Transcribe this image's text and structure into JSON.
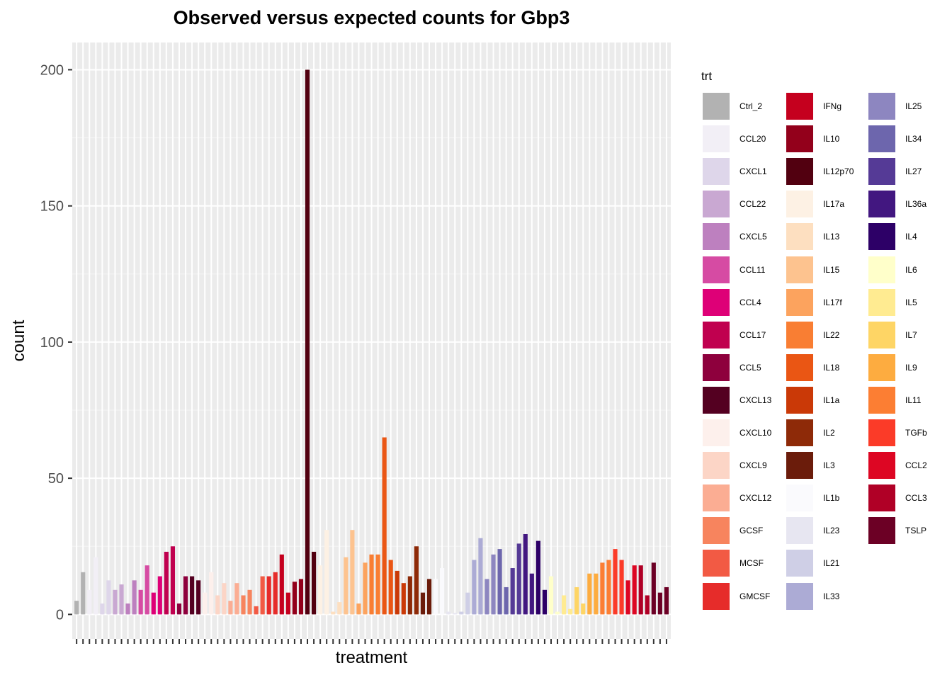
{
  "chart_data": {
    "type": "bar",
    "title": "Observed versus expected counts for Gbp3",
    "xlabel": "treatment",
    "ylabel": "count",
    "ylim": [
      -9,
      210
    ],
    "yticks": [
      0,
      50,
      100,
      150,
      200
    ],
    "grid": true,
    "legend": {
      "title": "trt",
      "placement": "right",
      "columns": 3,
      "entries": [
        {
          "label": "Ctrl_2",
          "color": "#b2b2b2"
        },
        {
          "label": "CCL20",
          "color": "#f2eff6"
        },
        {
          "label": "CXCL1",
          "color": "#ded6ea"
        },
        {
          "label": "CCL22",
          "color": "#c9a8d2"
        },
        {
          "label": "CXCL5",
          "color": "#bd80bf"
        },
        {
          "label": "CCL11",
          "color": "#d64ba3"
        },
        {
          "label": "CCL4",
          "color": "#de0077"
        },
        {
          "label": "CCL17",
          "color": "#c0004f"
        },
        {
          "label": "CCL5",
          "color": "#8e003d"
        },
        {
          "label": "CXCL13",
          "color": "#540021"
        },
        {
          "label": "CXCL10",
          "color": "#fdf0ec"
        },
        {
          "label": "CXCL9",
          "color": "#fcd5c6"
        },
        {
          "label": "CXCL12",
          "color": "#fbad93"
        },
        {
          "label": "GCSF",
          "color": "#f7845e"
        },
        {
          "label": "MCSF",
          "color": "#f25a44"
        },
        {
          "label": "GMCSF",
          "color": "#e62c2a"
        },
        {
          "label": "IFNg",
          "color": "#c5001e"
        },
        {
          "label": "IL10",
          "color": "#93001b"
        },
        {
          "label": "IL12p70",
          "color": "#520010"
        },
        {
          "label": "IL17a",
          "color": "#fdf1e4"
        },
        {
          "label": "IL13",
          "color": "#fddfc0"
        },
        {
          "label": "IL15",
          "color": "#fdc38f"
        },
        {
          "label": "IL17f",
          "color": "#fca35e"
        },
        {
          "label": "IL22",
          "color": "#f97e33"
        },
        {
          "label": "IL18",
          "color": "#ea5614"
        },
        {
          "label": "IL1a",
          "color": "#ca3907"
        },
        {
          "label": "IL2",
          "color": "#8e2a08"
        },
        {
          "label": "IL3",
          "color": "#6b1c0b"
        },
        {
          "label": "IL1b",
          "color": "#fafafd"
        },
        {
          "label": "IL23",
          "color": "#e7e6f1"
        },
        {
          "label": "IL21",
          "color": "#cfcfe6"
        },
        {
          "label": "IL33",
          "color": "#acabd5"
        },
        {
          "label": "IL25",
          "color": "#8d86c0"
        },
        {
          "label": "IL34",
          "color": "#6d66ad"
        },
        {
          "label": "IL27",
          "color": "#553a96"
        },
        {
          "label": "IL36a",
          "color": "#421780"
        },
        {
          "label": "IL4",
          "color": "#2d0067"
        },
        {
          "label": "IL6",
          "color": "#ffffca"
        },
        {
          "label": "IL5",
          "color": "#ffeb91"
        },
        {
          "label": "IL7",
          "color": "#fed565"
        },
        {
          "label": "IL9",
          "color": "#fdac40"
        },
        {
          "label": "IL11",
          "color": "#fc7e33"
        },
        {
          "label": "TGFb",
          "color": "#fb3b28"
        },
        {
          "label": "CCL2",
          "color": "#dd0623"
        },
        {
          "label": "CCL3",
          "color": "#b00026"
        },
        {
          "label": "TSLP",
          "color": "#6c0025"
        }
      ]
    },
    "series": [
      {
        "category": "Ctrl_2",
        "values": [
          5,
          15.5
        ]
      },
      {
        "category": "CCL20",
        "values": [
          9,
          21
        ]
      },
      {
        "category": "CXCL1",
        "values": [
          4,
          12.5
        ]
      },
      {
        "category": "CCL22",
        "values": [
          9,
          11
        ]
      },
      {
        "category": "CXCL5",
        "values": [
          4,
          12.5
        ]
      },
      {
        "category": "CCL11",
        "values": [
          9,
          18
        ]
      },
      {
        "category": "CCL4",
        "values": [
          8,
          14
        ]
      },
      {
        "category": "CCL17",
        "values": [
          23,
          25
        ]
      },
      {
        "category": "CCL5",
        "values": [
          4,
          14
        ]
      },
      {
        "category": "CXCL13",
        "values": [
          14,
          12.5
        ]
      },
      {
        "category": "CXCL10",
        "values": [
          8,
          15.5
        ]
      },
      {
        "category": "CXCL9",
        "values": [
          7,
          11.5
        ]
      },
      {
        "category": "CXCL12",
        "values": [
          5,
          11.5
        ]
      },
      {
        "category": "GCSF",
        "values": [
          7,
          9
        ]
      },
      {
        "category": "MCSF",
        "values": [
          3,
          14
        ]
      },
      {
        "category": "GMCSF",
        "values": [
          14,
          15.5
        ]
      },
      {
        "category": "IFNg",
        "values": [
          22,
          8
        ]
      },
      {
        "category": "IL10",
        "values": [
          12,
          13
        ]
      },
      {
        "category": "IL12p70",
        "values": [
          200,
          23
        ]
      },
      {
        "category": "IL17a",
        "values": [
          18,
          31
        ]
      },
      {
        "category": "IL13",
        "values": [
          1,
          4.5
        ]
      },
      {
        "category": "IL15",
        "values": [
          21,
          31
        ]
      },
      {
        "category": "IL17f",
        "values": [
          4,
          19
        ]
      },
      {
        "category": "IL22",
        "values": [
          22,
          22
        ]
      },
      {
        "category": "IL18",
        "values": [
          65,
          20
        ]
      },
      {
        "category": "IL1a",
        "values": [
          16,
          11.5
        ]
      },
      {
        "category": "IL2",
        "values": [
          14,
          25
        ]
      },
      {
        "category": "IL3",
        "values": [
          8,
          13
        ]
      },
      {
        "category": "IL1b",
        "values": [
          13,
          17
        ]
      },
      {
        "category": "IL23",
        "values": [
          1,
          0.5
        ]
      },
      {
        "category": "IL21",
        "values": [
          1,
          8
        ]
      },
      {
        "category": "IL33",
        "values": [
          20,
          28
        ]
      },
      {
        "category": "IL25",
        "values": [
          13,
          22
        ]
      },
      {
        "category": "IL34",
        "values": [
          24,
          10
        ]
      },
      {
        "category": "IL27",
        "values": [
          17,
          26
        ]
      },
      {
        "category": "IL36a",
        "values": [
          29.5,
          15
        ]
      },
      {
        "category": "IL4",
        "values": [
          27,
          9
        ]
      },
      {
        "category": "IL6",
        "values": [
          14,
          1
        ]
      },
      {
        "category": "IL5",
        "values": [
          7,
          2
        ]
      },
      {
        "category": "IL7",
        "values": [
          10,
          4
        ]
      },
      {
        "category": "IL9",
        "values": [
          15,
          15
        ]
      },
      {
        "category": "IL11",
        "values": [
          19,
          20
        ]
      },
      {
        "category": "TGFb",
        "values": [
          24,
          20
        ]
      },
      {
        "category": "CCL2",
        "values": [
          12.5,
          18
        ]
      },
      {
        "category": "CCL3",
        "values": [
          18,
          7
        ]
      },
      {
        "category": "TSLP",
        "values": [
          19,
          8
        ]
      },
      {
        "category": "",
        "values": [
          10
        ]
      }
    ]
  }
}
